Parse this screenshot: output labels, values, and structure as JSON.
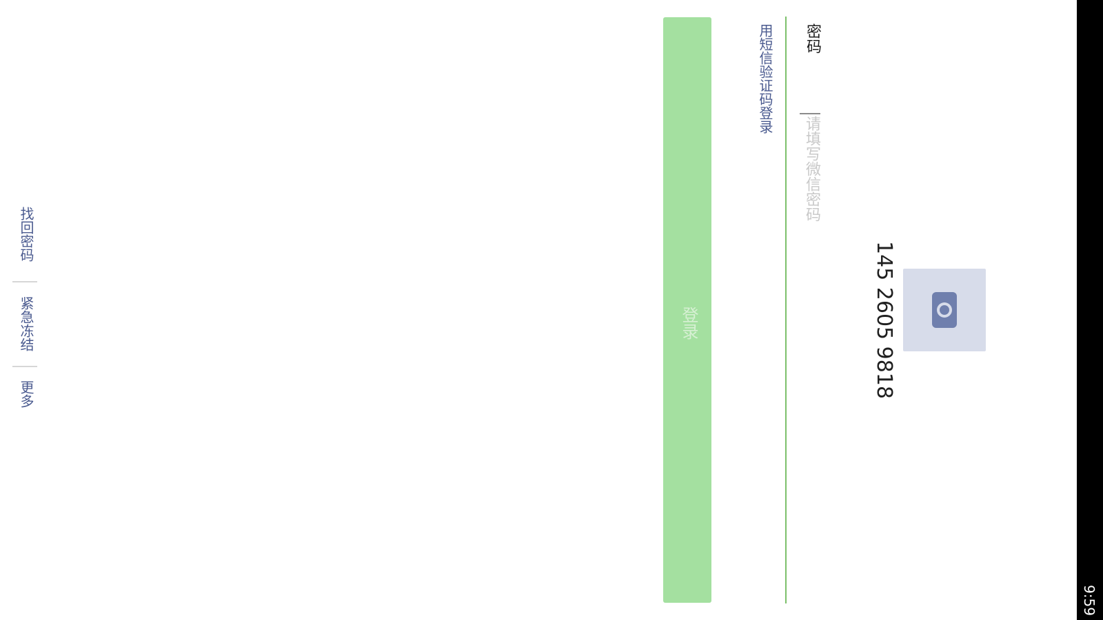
{
  "status_bar": {
    "time": "9:59"
  },
  "account": {
    "phone": "145 2605 9818",
    "avatar_icon": "camera-icon"
  },
  "password": {
    "label": "密码",
    "placeholder": "请填写微信密码"
  },
  "links": {
    "sms_login": "用短信验证码登录",
    "find_password": "找回密码",
    "emergency_freeze": "紧急冻结",
    "more": "更多"
  },
  "login_button": {
    "label": "登录"
  },
  "colors": {
    "accent_green": "#7cc06a",
    "button_green": "#a4e0a0",
    "link_blue": "#4a5a8f",
    "avatar_bg": "#d7dcea"
  }
}
